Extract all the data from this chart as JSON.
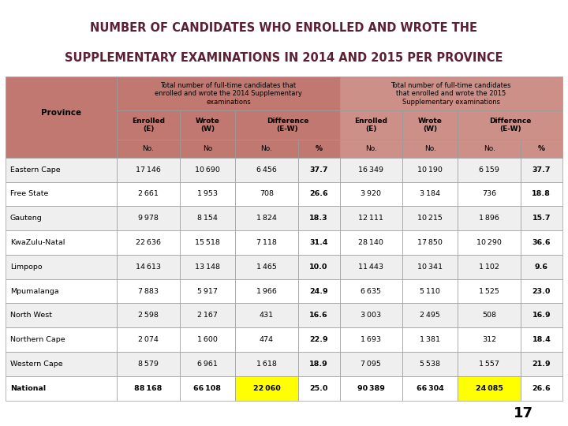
{
  "title_line1": "NUMBER OF CANDIDATES WHO ENROLLED AND WROTE THE",
  "title_line2": "SUPPLEMENTARY EXAMINATIONS IN 2014 AND 2015 PER PROVINCE",
  "title_color": "#5C2033",
  "header_bg_2014": "#C07870",
  "header_bg_2015": "#CC9088",
  "province_header_bg": "#C07870",
  "national_highlight": "#FFFF00",
  "divider_color": "#B8860B",
  "provinces": [
    "Eastern Cape",
    "Free State",
    "Gauteng",
    "KwaZulu-Natal",
    "Limpopo",
    "Mpumalanga",
    "North West",
    "Northern Cape",
    "Western Cape",
    "National"
  ],
  "data_2014": [
    [
      17146,
      10690,
      6456,
      37.7
    ],
    [
      2661,
      1953,
      708,
      26.6
    ],
    [
      9978,
      8154,
      1824,
      18.3
    ],
    [
      22636,
      15518,
      7118,
      31.4
    ],
    [
      14613,
      13148,
      1465,
      10.0
    ],
    [
      7883,
      5917,
      1966,
      24.9
    ],
    [
      2598,
      2167,
      431,
      16.6
    ],
    [
      2074,
      1600,
      474,
      22.9
    ],
    [
      8579,
      6961,
      1618,
      18.9
    ],
    [
      88168,
      66108,
      22060,
      25.0
    ]
  ],
  "data_2015": [
    [
      16349,
      10190,
      6159,
      37.7
    ],
    [
      3920,
      3184,
      736,
      18.8
    ],
    [
      12111,
      10215,
      1896,
      15.7
    ],
    [
      28140,
      17850,
      10290,
      36.6
    ],
    [
      11443,
      10341,
      1102,
      9.6
    ],
    [
      6635,
      5110,
      1525,
      23.0
    ],
    [
      3003,
      2495,
      508,
      16.9
    ],
    [
      1693,
      1381,
      312,
      18.4
    ],
    [
      7095,
      5538,
      1557,
      21.9
    ],
    [
      90389,
      66304,
      24085,
      26.6
    ]
  ],
  "col_header1": "Total number of full-time candidates that\nenrolled and wrote the 2014 Supplementary\nexaminations",
  "col_header2": "Total number of full-time candidates\nthat enrolled and wrote the 2015\nSupplementary examinations",
  "province_label": "Province",
  "page_number": "17",
  "border_color": "#999999",
  "row_bg_white": "#FFFFFF",
  "row_bg_gray": "#EFEFEF"
}
